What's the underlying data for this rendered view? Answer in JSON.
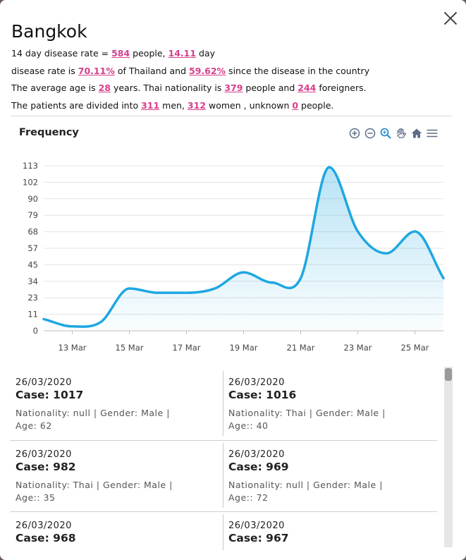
{
  "title": "Bangkok",
  "summary": {
    "l1_a": "14 day disease rate = ",
    "rate_14day": "584",
    "l1_b": " people, ",
    "days": "14.11",
    "l1_c": " day",
    "l2_a": "disease rate is ",
    "pct_thailand": "70.11%",
    "l2_b": " of Thailand and ",
    "pct_since": "59.62%",
    "l2_c": " since the disease in the country",
    "l3_a": "The average age is ",
    "avg_age": "28",
    "l3_b": " years. Thai nationality is ",
    "thai_count": "379",
    "l3_c": " people and ",
    "foreign_count": "244",
    "l3_d": " foreigners.",
    "l4_a": "The patients are divided into ",
    "men": "311",
    "l4_b": " men, ",
    "women": "312",
    "l4_c": " women , unknown ",
    "unknown": "0",
    "l4_d": " people."
  },
  "chart_title": "Frequency",
  "toolbar_icons": [
    "zoom-in-icon",
    "zoom-out-icon",
    "zoom-selection-icon",
    "pan-hand-icon",
    "reset-home-icon",
    "menu-icon"
  ],
  "chart_data": {
    "type": "area",
    "title": "Frequency",
    "x": [
      "12 Mar",
      "13 Mar",
      "14 Mar",
      "15 Mar",
      "16 Mar",
      "17 Mar",
      "18 Mar",
      "19 Mar",
      "20 Mar",
      "21 Mar",
      "22 Mar",
      "23 Mar",
      "24 Mar",
      "25 Mar",
      "26 Mar"
    ],
    "values": [
      8,
      3,
      6,
      29,
      26,
      26,
      29,
      40,
      33,
      36,
      112,
      68,
      53,
      68,
      36
    ],
    "ytick_labels": [
      "0",
      "11",
      "23",
      "34",
      "45",
      "57",
      "68",
      "79",
      "90",
      "102",
      "113"
    ],
    "ytick_values": [
      0,
      11.3,
      22.6,
      33.9,
      45.2,
      56.5,
      67.8,
      79.1,
      90.4,
      101.7,
      113
    ],
    "xtick_labels": [
      "13 Mar",
      "15 Mar",
      "17 Mar",
      "19 Mar",
      "21 Mar",
      "23 Mar",
      "25 Mar"
    ],
    "ylim": [
      0,
      113
    ],
    "grid": true,
    "line_color": "#1ea7e1"
  },
  "cases": [
    {
      "date": "26/03/2020",
      "case": "Case: 1017",
      "meta1": "Nationality: null | Gender: Male |",
      "meta2": "Age: 62"
    },
    {
      "date": "26/03/2020",
      "case": "Case: 1016",
      "meta1": "Nationality: Thai | Gender: Male |",
      "meta2": "Age:: 40"
    },
    {
      "date": "26/03/2020",
      "case": "Case: 982",
      "meta1": "Nationality: Thai | Gender: Male |",
      "meta2": "Age:: 35"
    },
    {
      "date": "26/03/2020",
      "case": "Case: 969",
      "meta1": "Nationality: null | Gender: Male |",
      "meta2": "Age:: 72"
    },
    {
      "date": "26/03/2020",
      "case": "Case: 968",
      "meta1": "",
      "meta2": ""
    },
    {
      "date": "26/03/2020",
      "case": "Case: 967",
      "meta1": "",
      "meta2": ""
    }
  ]
}
